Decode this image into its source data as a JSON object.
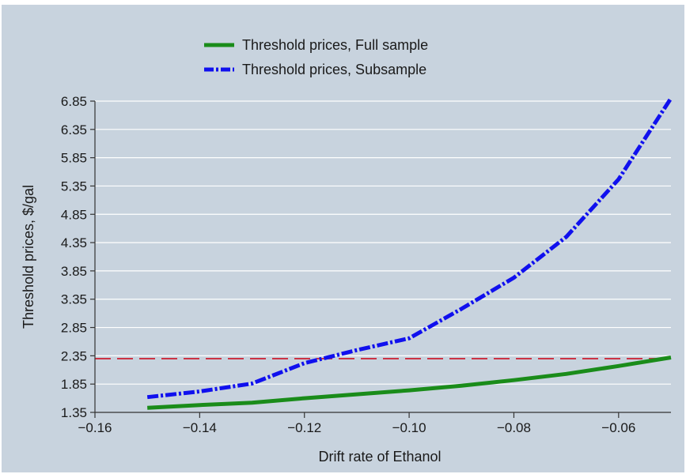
{
  "chart_data": {
    "type": "line",
    "title": "",
    "xlabel": "Drift rate of Ethanol",
    "ylabel": "Threshold prices, $/gal",
    "xlim": [
      -0.16,
      -0.05
    ],
    "ylim": [
      1.35,
      6.85
    ],
    "xticks": [
      -0.16,
      -0.14,
      -0.12,
      -0.1,
      -0.08,
      -0.06
    ],
    "xtick_labels": [
      "−0.16",
      "−0.14",
      "−0.12",
      "−0.10",
      "−0.08",
      "−0.06"
    ],
    "yticks": [
      1.35,
      1.85,
      2.35,
      2.85,
      3.35,
      3.85,
      4.35,
      4.85,
      5.35,
      5.85,
      6.35,
      6.85
    ],
    "ytick_labels": [
      "1.35",
      "1.85",
      "2.35",
      "2.85",
      "3.35",
      "3.85",
      "4.35",
      "4.85",
      "5.35",
      "5.85",
      "6.35",
      "6.85"
    ],
    "grid": "horizontal",
    "legend_position": "top-left",
    "background_color": "#c8d3de",
    "series": [
      {
        "name": "Threshold prices, Full sample",
        "color": "#1a8c1a",
        "style": "solid",
        "x": [
          -0.15,
          -0.14,
          -0.13,
          -0.12,
          -0.11,
          -0.1,
          -0.09,
          -0.08,
          -0.07,
          -0.06,
          -0.05
        ],
        "y": [
          1.43,
          1.48,
          1.52,
          1.6,
          1.67,
          1.74,
          1.82,
          1.92,
          2.03,
          2.17,
          2.32
        ]
      },
      {
        "name": "Threshold prices, Subsample",
        "color": "#1010ee",
        "style": "dashdot",
        "x": [
          -0.15,
          -0.14,
          -0.13,
          -0.12,
          -0.11,
          -0.1,
          -0.09,
          -0.08,
          -0.07,
          -0.06,
          -0.05
        ],
        "y": [
          1.62,
          1.72,
          1.86,
          2.22,
          2.45,
          2.66,
          3.18,
          3.73,
          4.45,
          5.47,
          6.9
        ]
      }
    ],
    "reference_line": {
      "y": 2.3,
      "color": "#cc3344",
      "style": "dashed"
    }
  }
}
